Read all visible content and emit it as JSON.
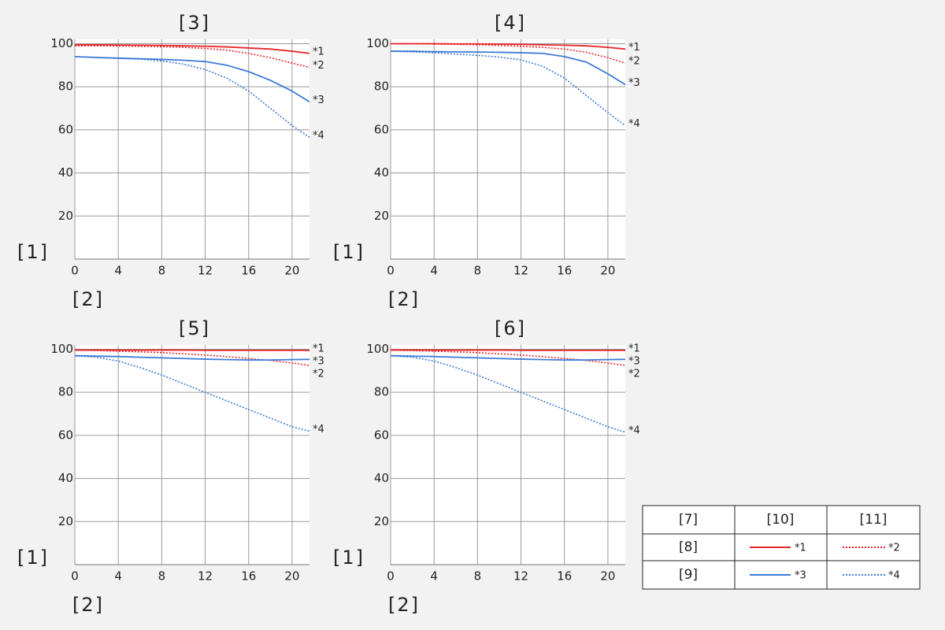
{
  "chart_data": [
    {
      "type": "line",
      "title": "[3]",
      "y_label": "[1]",
      "x_label": "[2]",
      "x": [
        0,
        2,
        4,
        6,
        8,
        10,
        12,
        14,
        16,
        18,
        20,
        21.6
      ],
      "xlim": [
        0,
        21.6
      ],
      "xticks": [
        0,
        4,
        8,
        12,
        16,
        20
      ],
      "ylim": [
        0,
        102
      ],
      "yticks": [
        20,
        40,
        60,
        80,
        100
      ],
      "grid": true,
      "series": [
        {
          "name": "*1",
          "color": "#e8262a",
          "dotted": false,
          "values": [
            99.5,
            99.5,
            99.4,
            99.3,
            99.2,
            99,
            98.8,
            98.5,
            98,
            97.5,
            96.5,
            95.5
          ]
        },
        {
          "name": "*2",
          "color": "#e8262a",
          "dotted": true,
          "values": [
            99,
            99,
            98.9,
            98.8,
            98.6,
            98.3,
            97.8,
            97,
            95.5,
            93.5,
            91,
            89
          ]
        },
        {
          "name": "*3",
          "color": "#3d7ad6",
          "dotted": false,
          "values": [
            94,
            93.6,
            93.3,
            93,
            92.7,
            92.3,
            91.7,
            90,
            87,
            83,
            78,
            73
          ]
        },
        {
          "name": "*4",
          "color": "#3d7ad6",
          "dotted": true,
          "values": [
            94,
            93.6,
            93.2,
            92.8,
            92,
            90.5,
            88,
            84,
            78,
            70,
            62,
            56.5
          ]
        }
      ]
    },
    {
      "type": "line",
      "title": "[4]",
      "y_label": "[1]",
      "x_label": "[2]",
      "x": [
        0,
        2,
        4,
        6,
        8,
        10,
        12,
        14,
        16,
        18,
        20,
        21.6
      ],
      "xlim": [
        0,
        21.6
      ],
      "xticks": [
        0,
        4,
        8,
        12,
        16,
        20
      ],
      "ylim": [
        0,
        102
      ],
      "yticks": [
        20,
        40,
        60,
        80,
        100
      ],
      "grid": true,
      "series": [
        {
          "name": "*1",
          "color": "#e8262a",
          "dotted": false,
          "values": [
            100,
            100,
            100,
            99.9,
            99.9,
            99.8,
            99.7,
            99.5,
            99.3,
            99,
            98.3,
            97.5
          ]
        },
        {
          "name": "*2",
          "color": "#e8262a",
          "dotted": true,
          "values": [
            100,
            99.9,
            99.8,
            99.7,
            99.5,
            99.2,
            98.8,
            98.3,
            97.5,
            96,
            93.5,
            91
          ]
        },
        {
          "name": "*3",
          "color": "#3d7ad6",
          "dotted": false,
          "values": [
            96.5,
            96.5,
            96.3,
            96.2,
            96.1,
            96,
            95.8,
            95.5,
            94,
            91.5,
            86,
            81
          ]
        },
        {
          "name": "*4",
          "color": "#3d7ad6",
          "dotted": true,
          "values": [
            96.5,
            96.2,
            95.8,
            95.2,
            94.6,
            93.8,
            92.5,
            89.5,
            84,
            76,
            68,
            62
          ]
        }
      ]
    },
    {
      "type": "line",
      "title": "[5]",
      "y_label": "[1]",
      "x_label": "[2]",
      "x": [
        0,
        2,
        4,
        6,
        8,
        10,
        12,
        14,
        16,
        18,
        20,
        21.6
      ],
      "xlim": [
        0,
        21.6
      ],
      "xticks": [
        0,
        4,
        8,
        12,
        16,
        20
      ],
      "ylim": [
        0,
        102
      ],
      "yticks": [
        20,
        40,
        60,
        80,
        100
      ],
      "grid": true,
      "series": [
        {
          "name": "*1",
          "color": "#e8262a",
          "dotted": false,
          "values": [
            99.6,
            99.6,
            99.6,
            99.6,
            99.6,
            99.6,
            99.5,
            99.5,
            99.5,
            99.5,
            99.5,
            99.5
          ]
        },
        {
          "name": "*2",
          "color": "#e8262a",
          "dotted": true,
          "values": [
            99.6,
            99.4,
            99.1,
            98.8,
            98.4,
            97.9,
            97.3,
            96.6,
            95.7,
            94.8,
            93.6,
            92.5
          ]
        },
        {
          "name": "*3",
          "color": "#3d7ad6",
          "dotted": false,
          "values": [
            97,
            96.8,
            96.6,
            96.3,
            96,
            95.7,
            95.4,
            95.2,
            95,
            95,
            95.2,
            95.3
          ]
        },
        {
          "name": "*4",
          "color": "#3d7ad6",
          "dotted": true,
          "values": [
            97,
            96.3,
            94.5,
            91.5,
            88,
            84,
            80,
            76,
            72,
            68,
            64,
            62
          ]
        }
      ]
    },
    {
      "type": "line",
      "title": "[6]",
      "y_label": "[1]",
      "x_label": "[2]",
      "x": [
        0,
        2,
        4,
        6,
        8,
        10,
        12,
        14,
        16,
        18,
        20,
        21.6
      ],
      "xlim": [
        0,
        21.6
      ],
      "xticks": [
        0,
        4,
        8,
        12,
        16,
        20
      ],
      "ylim": [
        0,
        102
      ],
      "yticks": [
        20,
        40,
        60,
        80,
        100
      ],
      "grid": true,
      "series": [
        {
          "name": "*1",
          "color": "#e8262a",
          "dotted": false,
          "values": [
            99.6,
            99.6,
            99.6,
            99.6,
            99.6,
            99.6,
            99.5,
            99.5,
            99.5,
            99.5,
            99.5,
            99.5
          ]
        },
        {
          "name": "*2",
          "color": "#e8262a",
          "dotted": true,
          "values": [
            99.6,
            99.4,
            99.1,
            98.8,
            98.4,
            97.9,
            97.3,
            96.6,
            95.7,
            94.8,
            93.6,
            92.5
          ]
        },
        {
          "name": "*3",
          "color": "#3d7ad6",
          "dotted": false,
          "values": [
            97,
            96.8,
            96.6,
            96.3,
            96,
            95.7,
            95.4,
            95.2,
            95,
            95,
            95.2,
            95.3
          ]
        },
        {
          "name": "*4",
          "color": "#3d7ad6",
          "dotted": true,
          "values": [
            97,
            96.3,
            94.5,
            91.5,
            88,
            84,
            80,
            76,
            72,
            68,
            64,
            61.5
          ]
        }
      ]
    }
  ],
  "legend_table": {
    "header": [
      "[7]",
      "[10]",
      "[11]"
    ],
    "rows": [
      {
        "label": "[8]",
        "entries": [
          "*1",
          "*2"
        ]
      },
      {
        "label": "[9]",
        "entries": [
          "*3",
          "*4"
        ]
      }
    ]
  }
}
